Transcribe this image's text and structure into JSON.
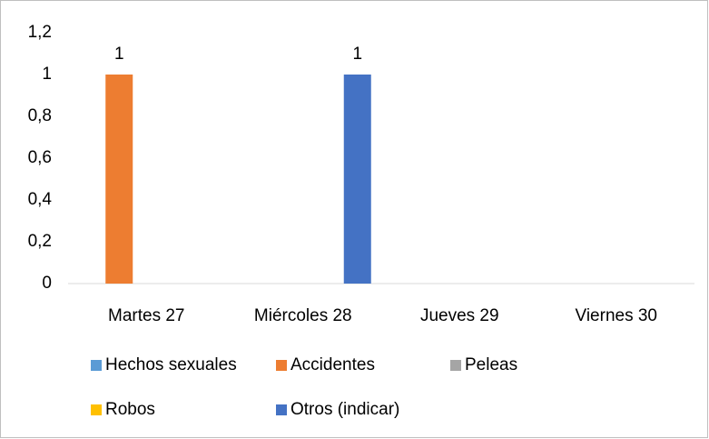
{
  "chart_data": {
    "type": "bar",
    "categories": [
      "Martes 27",
      "Miércoles 28",
      "Jueves 29",
      "Viernes 30"
    ],
    "series": [
      {
        "name": "Hechos sexuales",
        "color": "#5b9bd5",
        "values": [
          null,
          null,
          null,
          null
        ]
      },
      {
        "name": "Accidentes",
        "color": "#ed7d31",
        "values": [
          1,
          null,
          null,
          null
        ]
      },
      {
        "name": "Peleas",
        "color": "#a5a5a5",
        "values": [
          null,
          null,
          null,
          null
        ]
      },
      {
        "name": "Robos",
        "color": "#ffc000",
        "values": [
          null,
          null,
          null,
          null
        ]
      },
      {
        "name": "Otros (indicar)",
        "color": "#4472c4",
        "values": [
          null,
          1,
          null,
          null
        ]
      }
    ],
    "ylim": [
      0,
      1.2
    ],
    "yticks": [
      0,
      {
        "value": 0.2,
        "label": "0,2"
      },
      {
        "value": 0.4,
        "label": "0,4"
      },
      {
        "value": 0.6,
        "label": "0,6"
      },
      {
        "value": 0.8,
        "label": "0,8"
      },
      1,
      {
        "value": 1.2,
        "label": "1,2"
      }
    ],
    "grid": false
  }
}
